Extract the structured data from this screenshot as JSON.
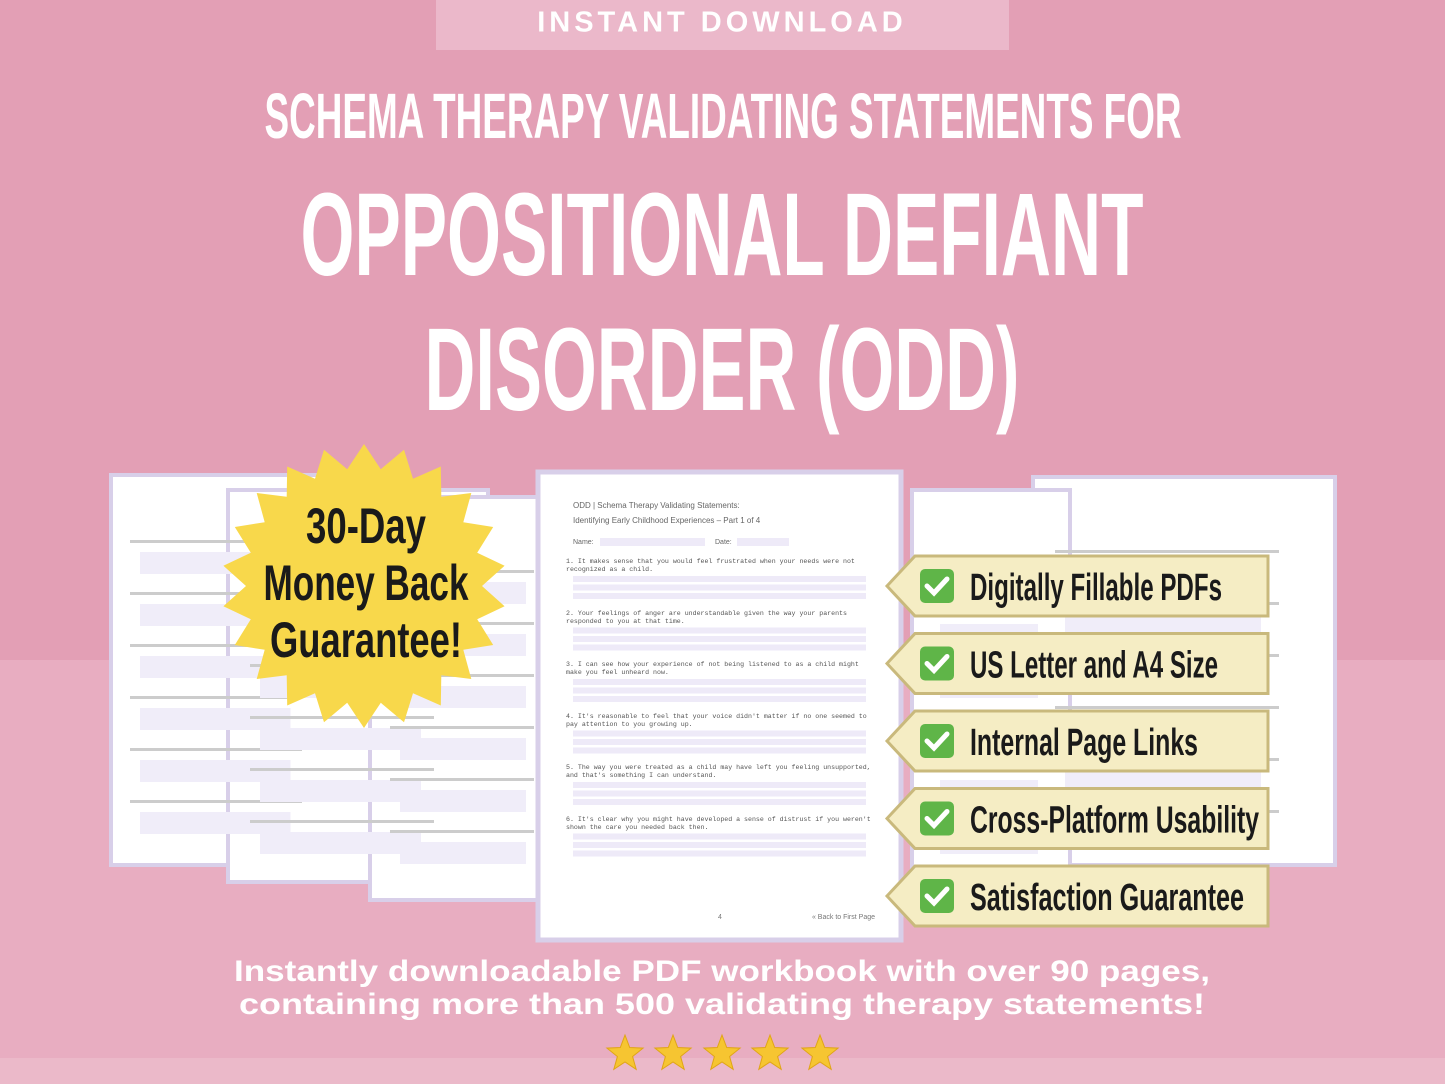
{
  "banner": "INSTANT DOWNLOAD",
  "heading": "SCHEMA THERAPY VALIDATING STATEMENTS FOR",
  "title_lines": [
    "OPPOSITIONAL DEFIANT",
    "DISORDER (ODD)"
  ],
  "badge": [
    "30-Day",
    "Money Back",
    "Guarantee!"
  ],
  "features": [
    "Digitally Fillable PDFs",
    "US Letter and A4 Size",
    "Internal Page Links",
    "Cross-Platform Usability",
    "Satisfaction Guarantee"
  ],
  "preview": {
    "header": [
      "ODD | Schema Therapy Validating Statements:",
      "Identifying Early Childhood Experiences  – Part 1 of 4"
    ],
    "name_label": "Name:",
    "date_label": "Date:",
    "statements": [
      "1. It makes sense that you would feel frustrated when your needs were not recognized as a child.",
      "2. Your feelings of anger are understandable given the way your parents responded to you at that time.",
      "3. I can see how your experience of not being listened to as a child might make you feel unheard now.",
      "4. It's reasonable to feel that your voice didn't matter if no one seemed to pay attention to you growing up.",
      "5. The way you were treated as a child may have left you feeling unsupported, and that's something I can understand.",
      "6. It's clear why you might have developed a sense of distrust if you weren't shown the care you needed back then."
    ],
    "page_number": "4",
    "back_link": "« Back to First Page"
  },
  "footer": [
    "Instantly downloadable PDF workbook with over 90 pages,",
    "containing more than 500 validating therapy statements!"
  ]
}
